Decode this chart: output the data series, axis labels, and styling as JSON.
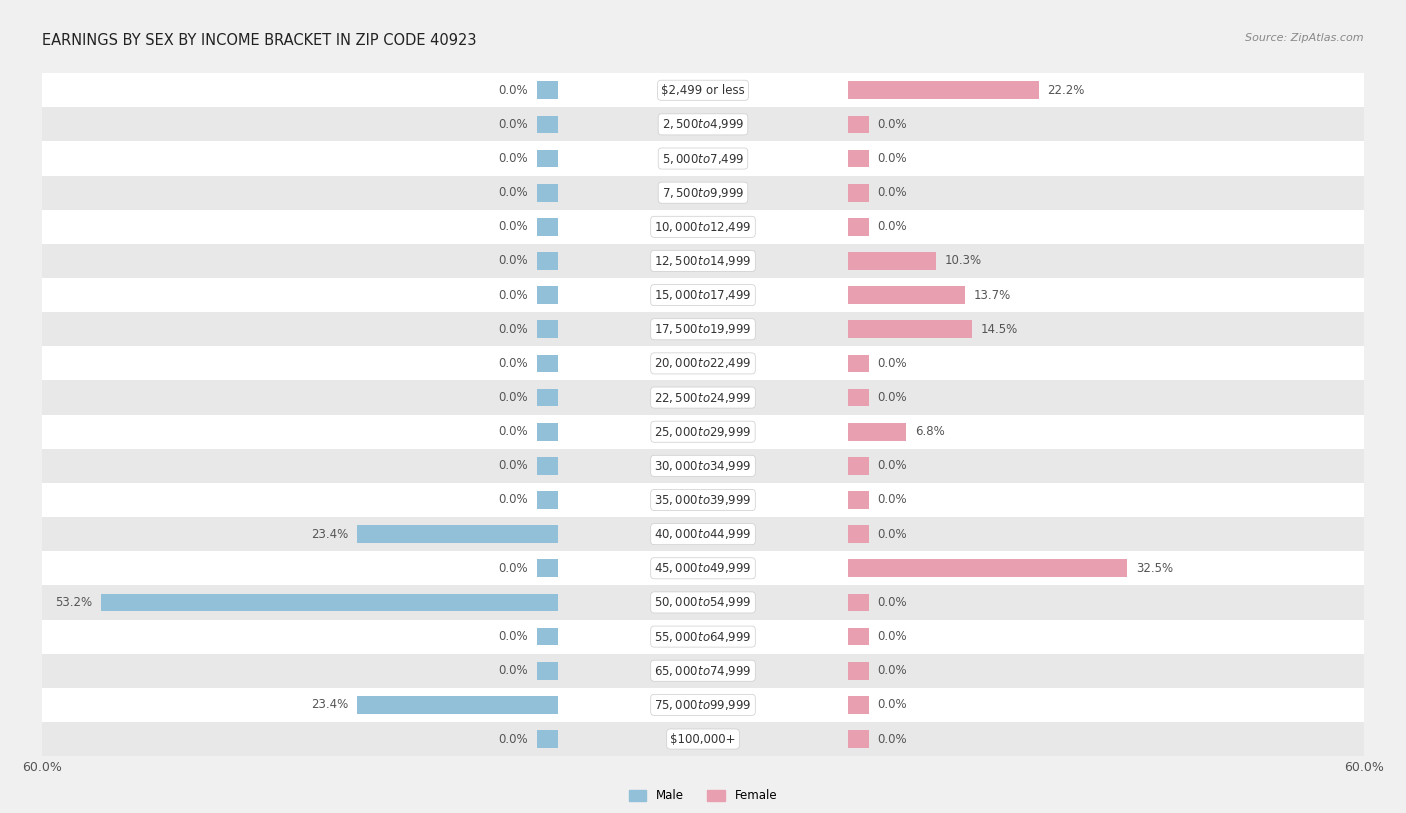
{
  "title": "EARNINGS BY SEX BY INCOME BRACKET IN ZIP CODE 40923",
  "source": "Source: ZipAtlas.com",
  "categories": [
    "$2,499 or less",
    "$2,500 to $4,999",
    "$5,000 to $7,499",
    "$7,500 to $9,999",
    "$10,000 to $12,499",
    "$12,500 to $14,999",
    "$15,000 to $17,499",
    "$17,500 to $19,999",
    "$20,000 to $22,499",
    "$22,500 to $24,999",
    "$25,000 to $29,999",
    "$30,000 to $34,999",
    "$35,000 to $39,999",
    "$40,000 to $44,999",
    "$45,000 to $49,999",
    "$50,000 to $54,999",
    "$55,000 to $64,999",
    "$65,000 to $74,999",
    "$75,000 to $99,999",
    "$100,000+"
  ],
  "male": [
    0.0,
    0.0,
    0.0,
    0.0,
    0.0,
    0.0,
    0.0,
    0.0,
    0.0,
    0.0,
    0.0,
    0.0,
    0.0,
    23.4,
    0.0,
    53.2,
    0.0,
    0.0,
    23.4,
    0.0
  ],
  "female": [
    22.2,
    0.0,
    0.0,
    0.0,
    0.0,
    10.3,
    13.7,
    14.5,
    0.0,
    0.0,
    6.8,
    0.0,
    0.0,
    0.0,
    32.5,
    0.0,
    0.0,
    0.0,
    0.0,
    0.0
  ],
  "male_color": "#92c0d8",
  "female_color": "#e8a0b0",
  "bar_height": 0.52,
  "xlim": 60.0,
  "stub": 2.5,
  "title_fontsize": 10.5,
  "label_fontsize": 8.5,
  "value_fontsize": 8.5,
  "tick_fontsize": 9,
  "bg_color": "#f0f0f0",
  "row_colors": [
    "#ffffff",
    "#e8e8e8"
  ],
  "center_label_bg": "#ffffff",
  "value_color": "#555555",
  "cat_color": "#333333"
}
